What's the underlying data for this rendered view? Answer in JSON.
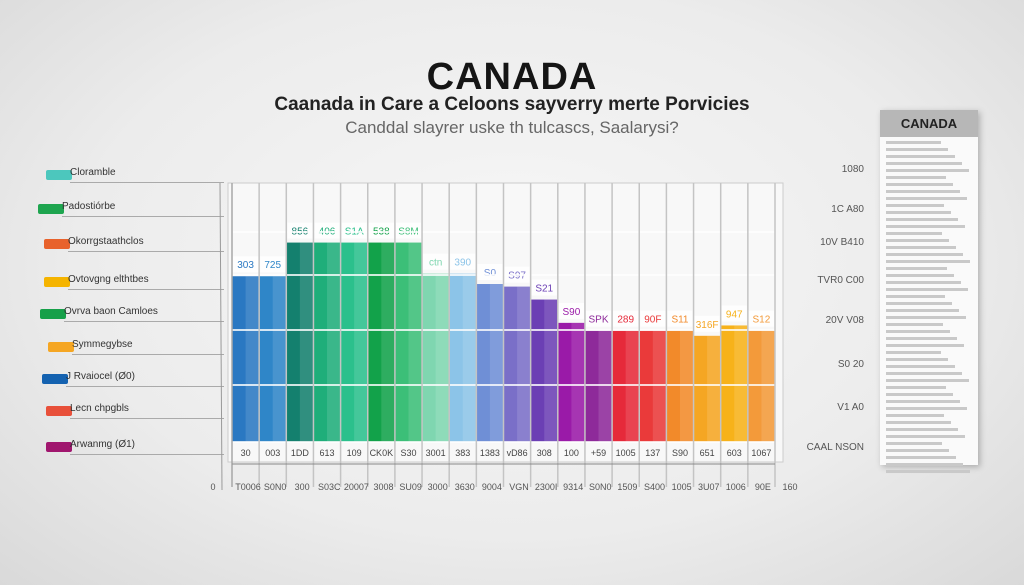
{
  "header": {
    "title": "CANADA",
    "subtitle": "Caanada in Care a Celoons sayverry merte Porvicies",
    "subtitle2": "Canddal slayrer uske th tulcascs, Saalarysi?"
  },
  "legend": [
    {
      "label": "Cloramble",
      "color": "#4cc7bd"
    },
    {
      "label": "Padostiórbe",
      "color": "#1ea54f"
    },
    {
      "label": "Okorrgstaathclos",
      "color": "#e8622c"
    },
    {
      "label": "Ovtovgng elthtbes",
      "color": "#f5b400"
    },
    {
      "label": "Ovrva baon Camloes",
      "color": "#16a049"
    },
    {
      "label": "Symmegybse",
      "color": "#f5a623"
    },
    {
      "label": "J Rvaiocel (Ø0)",
      "color": "#1462b0"
    },
    {
      "label": "Lecn chpgbls",
      "color": "#e8503a"
    },
    {
      "label": "Arwanmg (Ø1)",
      "color": "#a0166e"
    }
  ],
  "right_panel": {
    "title": "CANADA",
    "axis_labels": [
      "1080",
      "1C A80",
      "10V B410",
      "TVR0 C00",
      "20V V08",
      "S0 20",
      "V1 A0",
      "CAAL NSON"
    ]
  },
  "chart_data": {
    "type": "bar",
    "title": "CANADA",
    "ylim": [
      0,
      100
    ],
    "grid": true,
    "legend_position": "left",
    "value_labels": [
      "303",
      "725",
      "856",
      "406",
      "S1A",
      "538",
      "S8M",
      "ctn",
      "390",
      "S0",
      "S97",
      "S21",
      "S90",
      "SPK",
      "289",
      "90F",
      "S11",
      "316F",
      "947",
      "S12"
    ],
    "values": [
      64,
      64,
      77,
      77,
      77,
      77,
      77,
      65,
      65,
      61,
      60,
      55,
      46,
      43,
      43,
      43,
      43,
      41,
      45,
      43
    ],
    "categories": [
      "30",
      "003",
      "1DD",
      "613",
      "109",
      "CK0K",
      "S30",
      "3001",
      "383",
      "1383",
      "vD86",
      "308",
      "100",
      "+59",
      "1005",
      "137",
      "S90",
      "651",
      "603",
      "1067"
    ],
    "colors": [
      "#2a78c2",
      "#2f86c8",
      "#14806e",
      "#1fae7a",
      "#2bc08c",
      "#12a24a",
      "#3cbf78",
      "#7fd6b0",
      "#8cc4e8",
      "#6f8fd6",
      "#7a6fc8",
      "#6b3fb4",
      "#9a1aa8",
      "#8e2a9a",
      "#e62a3a",
      "#ea3a3a",
      "#f28a2a",
      "#f5a623",
      "#f7b21a",
      "#f39a3a"
    ],
    "x_tick_labels": [
      "0",
      "T0006",
      "S0N0",
      "300",
      "S03C",
      "20007",
      "3008",
      "SU09",
      "3000",
      "3630",
      "9004",
      "VGN",
      "2300I",
      "9314",
      "S0N0",
      "1509",
      "S400",
      "1005",
      "3U07",
      "1006",
      "90E",
      "160"
    ]
  }
}
